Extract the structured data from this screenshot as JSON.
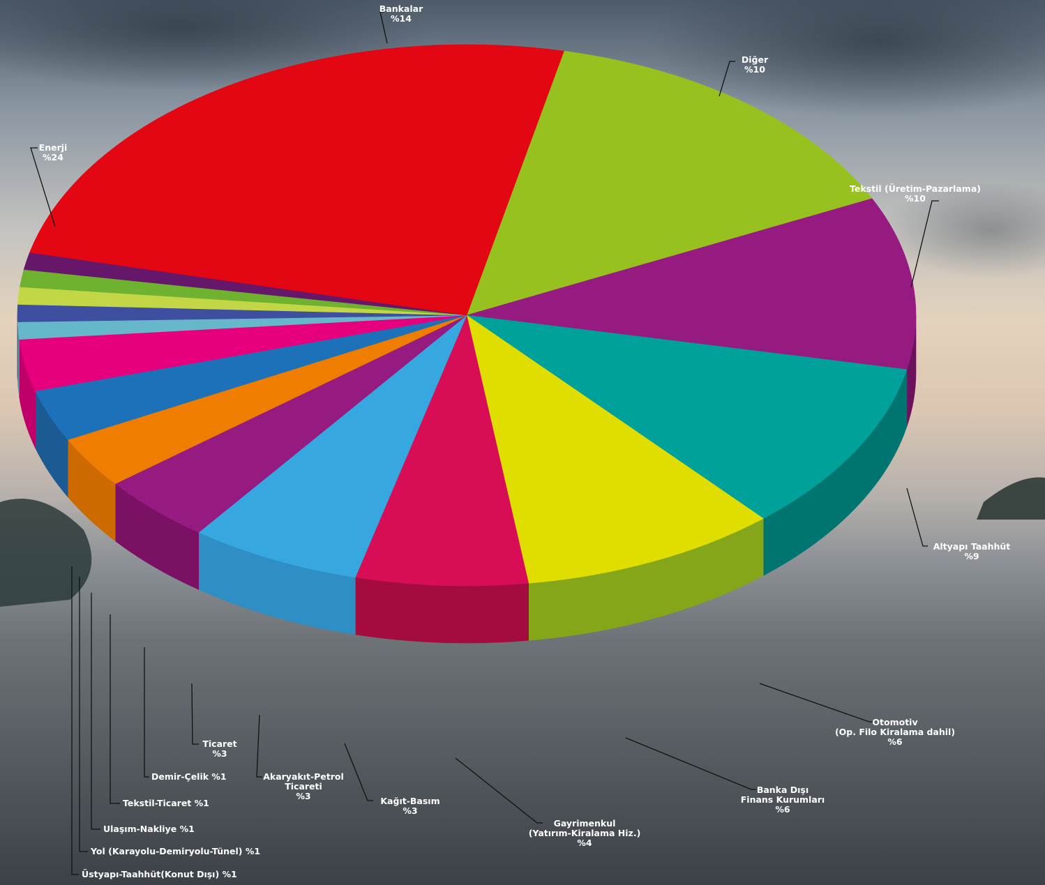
{
  "chart_data": {
    "type": "pie",
    "style": "3d",
    "title": "",
    "value_format": "%{v}",
    "slices": [
      {
        "label": "Bankalar",
        "value": 14,
        "color": "#97c11e",
        "side": "#6f8e15"
      },
      {
        "label": "Diğer",
        "value": 10,
        "color": "#951b81",
        "side": "#6c125d"
      },
      {
        "label": "Tekstil (Üretim-Pazarlama)",
        "value": 10,
        "color": "#00a19a",
        "side": "#007570"
      },
      {
        "label": "Altyapı Taahhüt",
        "value": 9,
        "color": "#e0de00",
        "side": "#86a619"
      },
      {
        "label": "Otomotiv (Op. Filo Kiralama dahil)",
        "value": 6,
        "color": "#d70e56",
        "side": "#a40c3f"
      },
      {
        "label": "Banka Dışı Finans Kurumları",
        "value": 6,
        "color": "#37a7df",
        "side": "#2f8fc4"
      },
      {
        "label": "Gayrimenkul (Yatırım-Kiralama Hiz.)",
        "value": 4,
        "color": "#951b81",
        "side": "#7b1165"
      },
      {
        "label": "Kağıt-Basım",
        "value": 3,
        "color": "#ef7d00",
        "side": "#cc6a00"
      },
      {
        "label": "Akaryakıt-Petrol Ticareti",
        "value": 3,
        "color": "#1d71b8",
        "side": "#1b5a92"
      },
      {
        "label": "Ticaret",
        "value": 3,
        "color": "#e6007e",
        "side": "#c0006a"
      },
      {
        "label": "Demir-Çelik",
        "value": 1,
        "color": "#66b6cc",
        "side": "#4c96a8"
      },
      {
        "label": "Tekstil-Ticaret",
        "value": 1,
        "color": "#3f4f9f",
        "side": "#2f3c7c"
      },
      {
        "label": "Ulaşım-Nakliye",
        "value": 1,
        "color": "#c2d646",
        "side": "#a3b52e"
      },
      {
        "label": "Yol (Karayolu-Demiryolu-Tünel)",
        "value": 1,
        "color": "#6fb230",
        "side": "#558a24"
      },
      {
        "label": "Üstyapı-Taahhüt(Konut Dışı)",
        "value": 1,
        "color": "#661769",
        "side": "#4b104d"
      },
      {
        "label": "Enerji",
        "value": 24,
        "color": "#e30613",
        "side": "#a9040e"
      }
    ],
    "callouts": [
      {
        "data_name": "label-bankalar",
        "lines": [
          "Bankalar",
          "%14"
        ]
      },
      {
        "data_name": "label-diger",
        "lines": [
          "Diğer",
          "%10"
        ]
      },
      {
        "data_name": "label-tekstil-uretim",
        "lines": [
          "Tekstil (Üretim-Pazarlama)",
          "%10"
        ]
      },
      {
        "data_name": "label-altyapi",
        "lines": [
          "Altyapı Taahhüt",
          "%9"
        ]
      },
      {
        "data_name": "label-otomotiv",
        "lines": [
          "Otomotiv",
          "(Op. Filo Kiralama dahil)",
          "%6"
        ]
      },
      {
        "data_name": "label-banka-disi",
        "lines": [
          "Banka Dışı",
          "Finans Kurumları",
          "%6"
        ]
      },
      {
        "data_name": "label-gayrimenkul",
        "lines": [
          "Gayrimenkul",
          "(Yatırım-Kiralama Hiz.)",
          "%4"
        ]
      },
      {
        "data_name": "label-kagit-basim",
        "lines": [
          "Kağıt-Basım",
          "%3"
        ]
      },
      {
        "data_name": "label-akaryakit",
        "lines": [
          "Akaryakıt-Petrol",
          "Ticareti",
          "%3"
        ]
      },
      {
        "data_name": "label-ticaret",
        "lines": [
          "Ticaret",
          "%3"
        ]
      },
      {
        "data_name": "label-demir-celik",
        "lines": [
          "Demir-Çelik %1"
        ]
      },
      {
        "data_name": "label-tekstil-ticaret",
        "lines": [
          "Tekstil-Ticaret %1"
        ]
      },
      {
        "data_name": "label-ulasim",
        "lines": [
          "Ulaşım-Nakliye %1"
        ]
      },
      {
        "data_name": "label-yol",
        "lines": [
          "Yol (Karayolu-Demiryolu-Tünel) %1"
        ]
      },
      {
        "data_name": "label-ustyapi",
        "lines": [
          "Üstyapı-Taahhüt(Konut Dışı) %1"
        ]
      },
      {
        "data_name": "label-enerji",
        "lines": [
          "Enerji",
          "%24"
        ]
      }
    ]
  }
}
